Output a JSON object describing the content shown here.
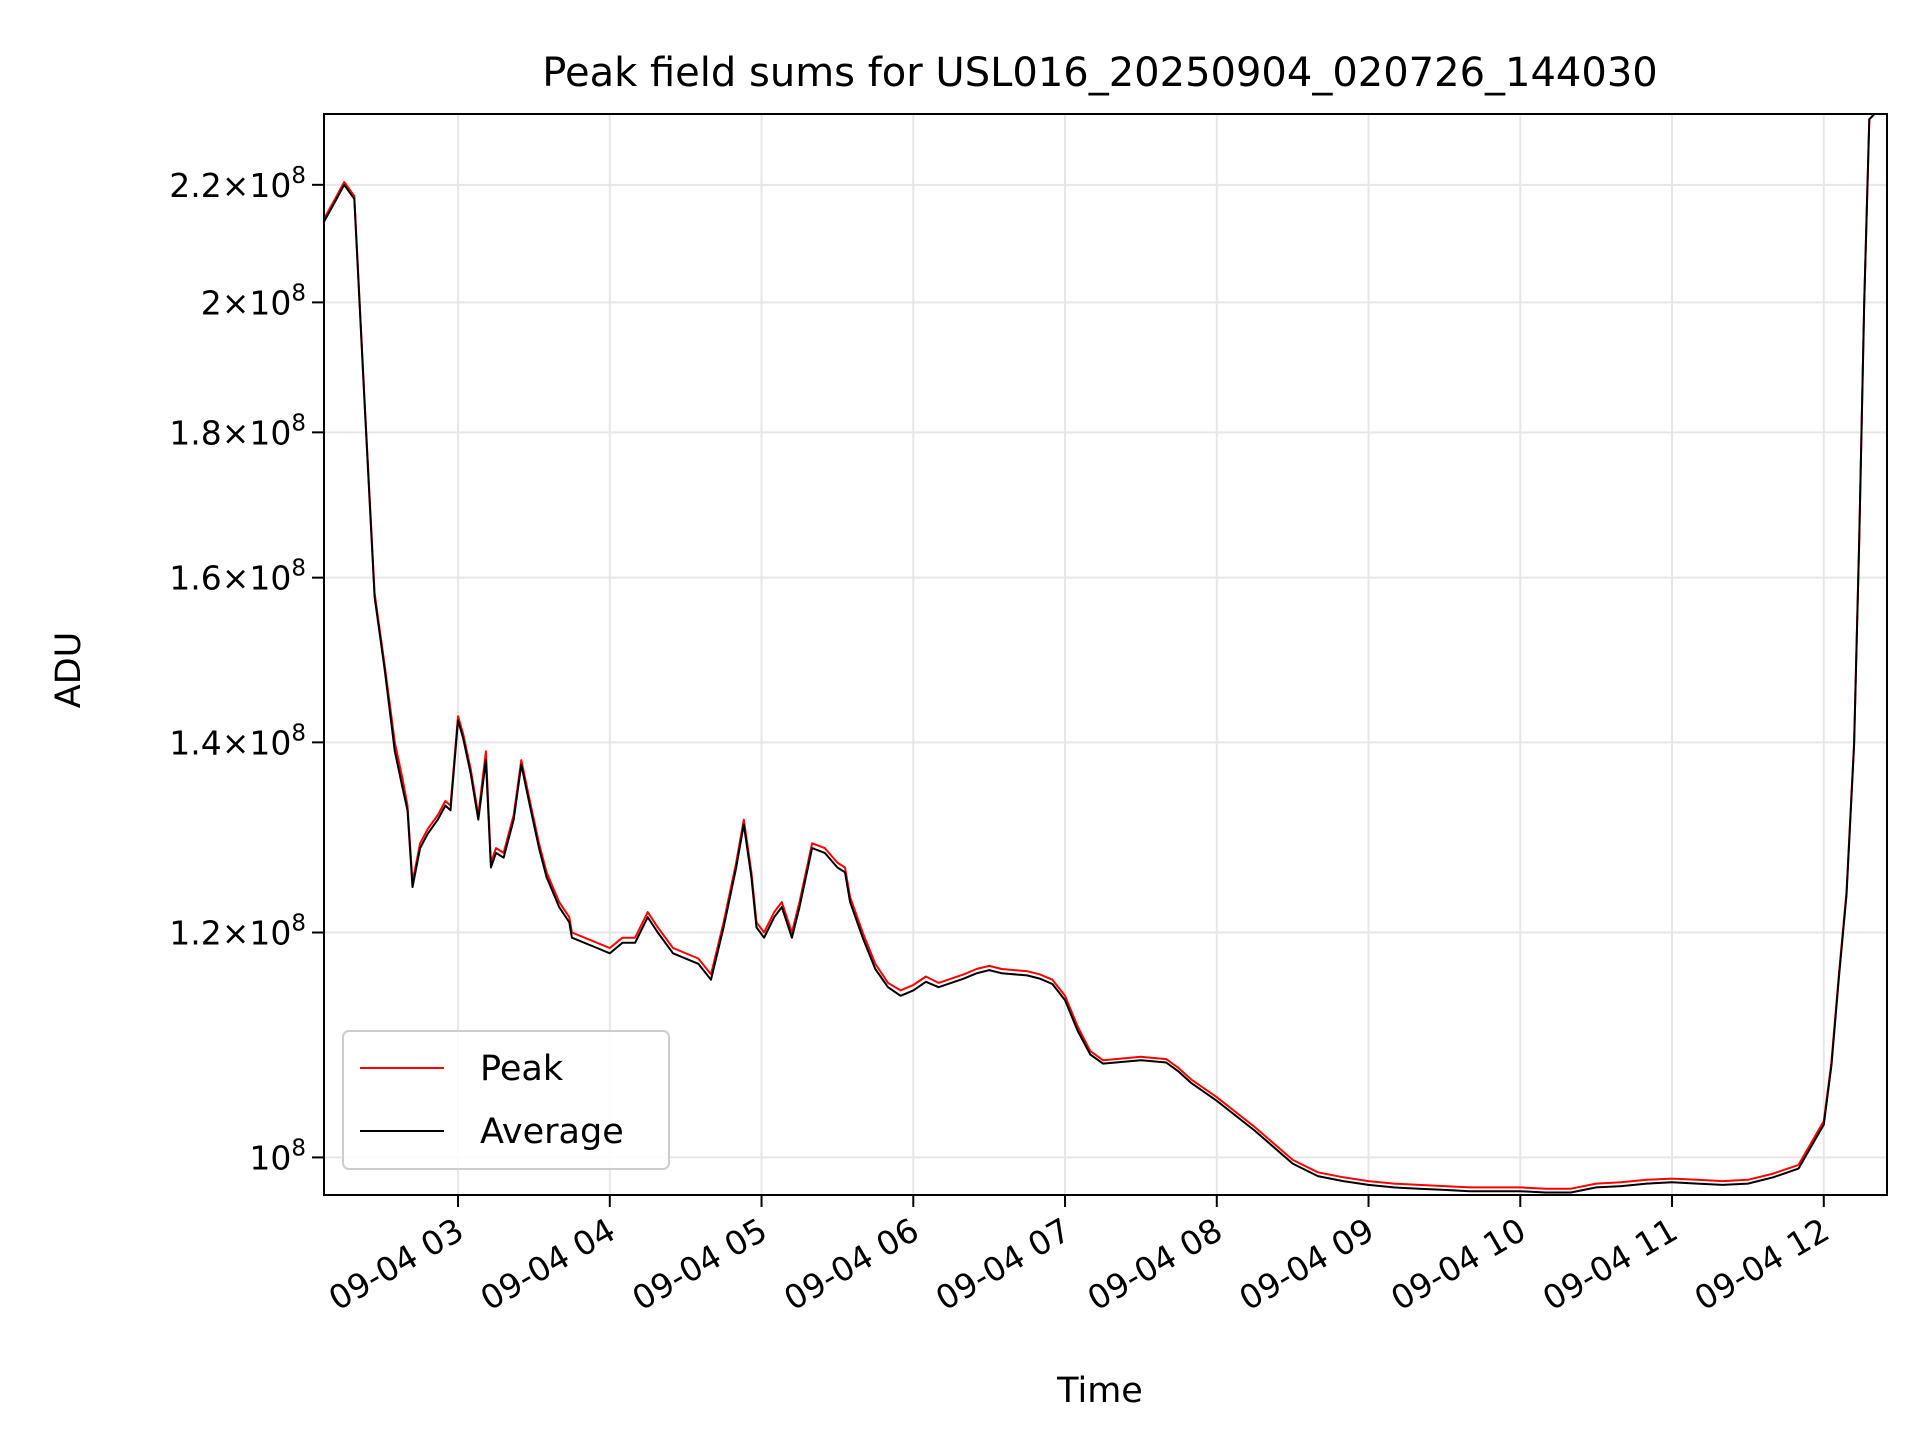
{
  "chart_data": {
    "type": "line",
    "title": "Peak field sums for USL016_20250904_020726_144030",
    "xlabel": "Time",
    "ylabel": "ADU",
    "yscale": "log",
    "xlim": [
      "09-04 02:07",
      "09-04 12:25"
    ],
    "ylim": [
      97000000,
      233000000
    ],
    "grid": true,
    "legend_position": "lower-left",
    "x_ticks": [
      "09-04 03",
      "09-04 04",
      "09-04 05",
      "09-04 06",
      "09-04 07",
      "09-04 08",
      "09-04 09",
      "09-04 10",
      "09-04 11",
      "09-04 12"
    ],
    "x_tick_times": [
      "09-04 03:00",
      "09-04 04:00",
      "09-04 05:00",
      "09-04 06:00",
      "09-04 07:00",
      "09-04 08:00",
      "09-04 09:00",
      "09-04 10:00",
      "09-04 11:00",
      "09-04 12:00"
    ],
    "y_ticks": [
      {
        "value": 100000000,
        "mantissa": "",
        "exponent": "8"
      },
      {
        "value": 120000000,
        "mantissa": "1.2",
        "exponent": "8"
      },
      {
        "value": 140000000,
        "mantissa": "1.4",
        "exponent": "8"
      },
      {
        "value": 160000000,
        "mantissa": "1.6",
        "exponent": "8"
      },
      {
        "value": 180000000,
        "mantissa": "1.8",
        "exponent": "8"
      },
      {
        "value": 200000000,
        "mantissa": "2",
        "exponent": "8"
      },
      {
        "value": 220000000,
        "mantissa": "2.2",
        "exponent": "8"
      }
    ],
    "series": [
      {
        "name": "Peak",
        "color": "#ff0000",
        "x": [
          "09-04 02:07",
          "09-04 02:12",
          "09-04 02:15",
          "09-04 02:19",
          "09-04 02:23",
          "09-04 02:27",
          "09-04 02:31",
          "09-04 02:35",
          "09-04 02:38",
          "09-04 02:40",
          "09-04 02:42",
          "09-04 02:45",
          "09-04 02:48",
          "09-04 02:52",
          "09-04 02:55",
          "09-04 02:57",
          "09-04 03:00",
          "09-04 03:02",
          "09-04 03:05",
          "09-04 03:08",
          "09-04 03:11",
          "09-04 03:13",
          "09-04 03:15",
          "09-04 03:18",
          "09-04 03:22",
          "09-04 03:25",
          "09-04 03:28",
          "09-04 03:32",
          "09-04 03:35",
          "09-04 03:40",
          "09-04 03:44",
          "09-04 03:45",
          "09-04 03:55",
          "09-04 04:00",
          "09-04 04:05",
          "09-04 04:10",
          "09-04 04:15",
          "09-04 04:19",
          "09-04 04:25",
          "09-04 04:35",
          "09-04 04:40",
          "09-04 04:45",
          "09-04 04:50",
          "09-04 04:53",
          "09-04 04:56",
          "09-04 04:58",
          "09-04 05:01",
          "09-04 05:05",
          "09-04 05:08",
          "09-04 05:12",
          "09-04 05:15",
          "09-04 05:20",
          "09-04 05:25",
          "09-04 05:30",
          "09-04 05:33",
          "09-04 05:35",
          "09-04 05:40",
          "09-04 05:45",
          "09-04 05:50",
          "09-04 05:55",
          "09-04 06:00",
          "09-04 06:05",
          "09-04 06:10",
          "09-04 06:20",
          "09-04 06:25",
          "09-04 06:30",
          "09-04 06:35",
          "09-04 06:45",
          "09-04 06:50",
          "09-04 06:55",
          "09-04 07:00",
          "09-04 07:05",
          "09-04 07:10",
          "09-04 07:15",
          "09-04 07:20",
          "09-04 07:30",
          "09-04 07:40",
          "09-04 07:45",
          "09-04 07:50",
          "09-04 08:00",
          "09-04 08:15",
          "09-04 08:30",
          "09-04 08:40",
          "09-04 08:50",
          "09-04 09:00",
          "09-04 09:10",
          "09-04 09:20",
          "09-04 09:30",
          "09-04 09:40",
          "09-04 09:50",
          "09-04 10:00",
          "09-04 10:10",
          "09-04 10:20",
          "09-04 10:30",
          "09-04 10:40",
          "09-04 10:50",
          "09-04 11:00",
          "09-04 11:10",
          "09-04 11:20",
          "09-04 11:30",
          "09-04 11:40",
          "09-04 11:50",
          "09-04 12:00",
          "09-04 12:03",
          "09-04 12:06",
          "09-04 12:09",
          "09-04 12:12",
          "09-04 12:14",
          "09-04 12:16",
          "09-04 12:18",
          "09-04 12:20",
          "09-04 12:22",
          "09-04 12:25"
        ],
        "values": [
          214000000,
          218000000,
          220500000,
          218000000,
          185000000,
          158000000,
          149000000,
          140000000,
          136000000,
          133000000,
          125000000,
          129000000,
          130500000,
          132000000,
          133500000,
          133000000,
          143000000,
          141000000,
          137000000,
          132000000,
          139000000,
          127000000,
          128500000,
          128000000,
          132000000,
          138000000,
          134000000,
          129000000,
          126000000,
          123000000,
          121500000,
          120000000,
          119000000,
          118500000,
          119500000,
          119500000,
          122000000,
          120500000,
          118500000,
          117500000,
          116000000,
          121000000,
          127000000,
          131500000,
          126000000,
          121000000,
          120000000,
          122000000,
          123000000,
          120000000,
          123000000,
          129000000,
          128500000,
          127000000,
          126500000,
          123500000,
          120000000,
          117000000,
          115200000,
          114500000,
          115000000,
          115800000,
          115200000,
          116000000,
          116500000,
          116800000,
          116500000,
          116300000,
          116000000,
          115500000,
          114000000,
          111200000,
          109000000,
          108200000,
          108300000,
          108500000,
          108300000,
          107500000,
          106500000,
          105000000,
          102500000,
          99800000,
          98800000,
          98400000,
          98100000,
          97900000,
          97800000,
          97700000,
          97600000,
          97600000,
          97600000,
          97500000,
          97500000,
          97900000,
          98000000,
          98200000,
          98300000,
          98200000,
          98100000,
          98200000,
          98700000,
          99400000,
          103000000,
          108000000,
          116000000,
          124000000,
          140000000,
          165000000,
          200000000,
          232000000,
          233000000,
          233000000,
          233000000
        ]
      },
      {
        "name": "Average",
        "color": "#000000",
        "x": [
          "09-04 02:07",
          "09-04 02:12",
          "09-04 02:15",
          "09-04 02:19",
          "09-04 02:23",
          "09-04 02:27",
          "09-04 02:31",
          "09-04 02:35",
          "09-04 02:38",
          "09-04 02:40",
          "09-04 02:42",
          "09-04 02:45",
          "09-04 02:48",
          "09-04 02:52",
          "09-04 02:55",
          "09-04 02:57",
          "09-04 03:00",
          "09-04 03:02",
          "09-04 03:05",
          "09-04 03:08",
          "09-04 03:11",
          "09-04 03:13",
          "09-04 03:15",
          "09-04 03:18",
          "09-04 03:22",
          "09-04 03:25",
          "09-04 03:28",
          "09-04 03:32",
          "09-04 03:35",
          "09-04 03:40",
          "09-04 03:44",
          "09-04 03:45",
          "09-04 03:55",
          "09-04 04:00",
          "09-04 04:05",
          "09-04 04:10",
          "09-04 04:15",
          "09-04 04:19",
          "09-04 04:25",
          "09-04 04:35",
          "09-04 04:40",
          "09-04 04:45",
          "09-04 04:50",
          "09-04 04:53",
          "09-04 04:56",
          "09-04 04:58",
          "09-04 05:01",
          "09-04 05:05",
          "09-04 05:08",
          "09-04 05:12",
          "09-04 05:15",
          "09-04 05:20",
          "09-04 05:25",
          "09-04 05:30",
          "09-04 05:33",
          "09-04 05:35",
          "09-04 05:40",
          "09-04 05:45",
          "09-04 05:50",
          "09-04 05:55",
          "09-04 06:00",
          "09-04 06:05",
          "09-04 06:10",
          "09-04 06:20",
          "09-04 06:25",
          "09-04 06:30",
          "09-04 06:35",
          "09-04 06:45",
          "09-04 06:50",
          "09-04 06:55",
          "09-04 07:00",
          "09-04 07:05",
          "09-04 07:10",
          "09-04 07:15",
          "09-04 07:20",
          "09-04 07:30",
          "09-04 07:40",
          "09-04 07:45",
          "09-04 07:50",
          "09-04 08:00",
          "09-04 08:15",
          "09-04 08:30",
          "09-04 08:40",
          "09-04 08:50",
          "09-04 09:00",
          "09-04 09:10",
          "09-04 09:20",
          "09-04 09:30",
          "09-04 09:40",
          "09-04 09:50",
          "09-04 10:00",
          "09-04 10:10",
          "09-04 10:20",
          "09-04 10:30",
          "09-04 10:40",
          "09-04 10:50",
          "09-04 11:00",
          "09-04 11:10",
          "09-04 11:20",
          "09-04 11:30",
          "09-04 11:40",
          "09-04 11:50",
          "09-04 12:00",
          "09-04 12:03",
          "09-04 12:06",
          "09-04 12:09",
          "09-04 12:12",
          "09-04 12:14",
          "09-04 12:16",
          "09-04 12:18",
          "09-04 12:20",
          "09-04 12:22",
          "09-04 12:25"
        ],
        "values": [
          213500000,
          217500000,
          220000000,
          217500000,
          184500000,
          157500000,
          148500000,
          139000000,
          135000000,
          132500000,
          124500000,
          128500000,
          130000000,
          131500000,
          133000000,
          132500000,
          142500000,
          140500000,
          136500000,
          131500000,
          138000000,
          126500000,
          128000000,
          127500000,
          131500000,
          137500000,
          133500000,
          128500000,
          125500000,
          122500000,
          121000000,
          119500000,
          118500000,
          118000000,
          119000000,
          119000000,
          121500000,
          120000000,
          118000000,
          117000000,
          115500000,
          120500000,
          126500000,
          131000000,
          125500000,
          120500000,
          119500000,
          121500000,
          122500000,
          119500000,
          122500000,
          128500000,
          128000000,
          126500000,
          126000000,
          123000000,
          119500000,
          116500000,
          114800000,
          114000000,
          114500000,
          115300000,
          114800000,
          115600000,
          116100000,
          116400000,
          116100000,
          115900000,
          115600000,
          115100000,
          113600000,
          110800000,
          108700000,
          107900000,
          108000000,
          108200000,
          108000000,
          107200000,
          106200000,
          104700000,
          102200000,
          99500000,
          98500000,
          98100000,
          97800000,
          97600000,
          97500000,
          97400000,
          97300000,
          97300000,
          97300000,
          97200000,
          97200000,
          97600000,
          97700000,
          97900000,
          98000000,
          97900000,
          97800000,
          97900000,
          98400000,
          99100000,
          102700000,
          107700000,
          115700000,
          123700000,
          139700000,
          164700000,
          199700000,
          232000000,
          233000000,
          233000000,
          233000000
        ]
      }
    ]
  }
}
